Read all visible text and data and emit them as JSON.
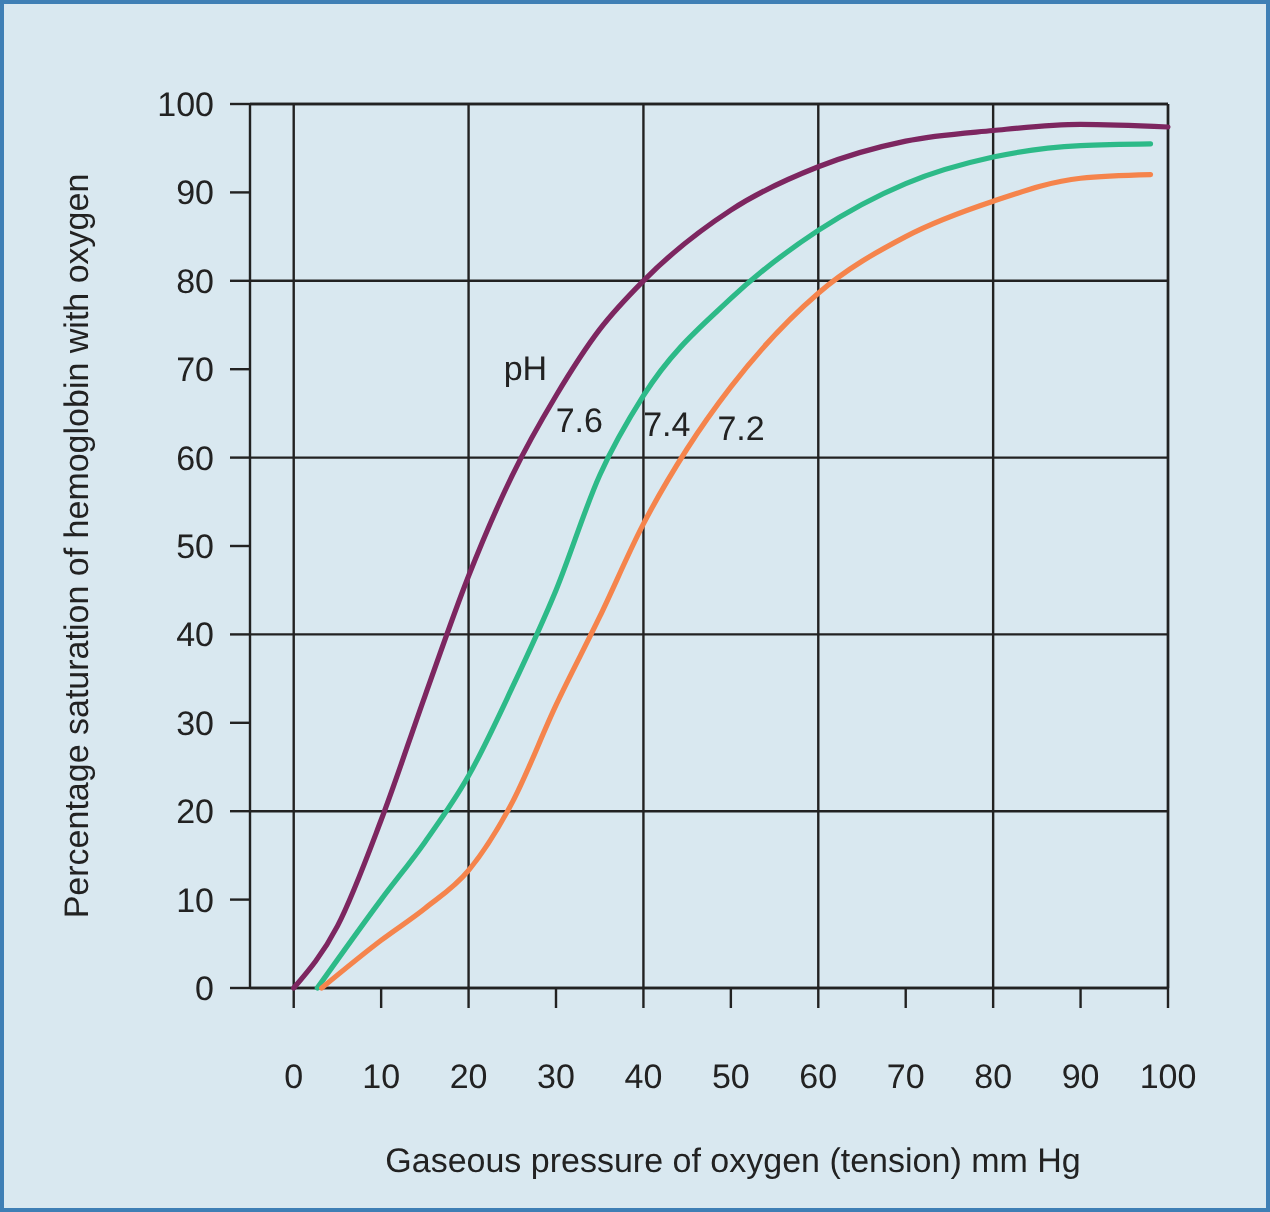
{
  "chart_data": {
    "type": "line",
    "xlabel": "Gaseous pressure of oxygen (tension) mm Hg",
    "ylabel": "Percentage saturation of hemoglobin with oxygen",
    "legend_title": "pH",
    "xlim": [
      -5,
      100
    ],
    "ylim": [
      0,
      100
    ],
    "xticks": [
      0,
      10,
      20,
      30,
      40,
      50,
      60,
      70,
      80,
      90,
      100
    ],
    "yticks": [
      0,
      10,
      20,
      30,
      40,
      50,
      60,
      70,
      80,
      90,
      100
    ],
    "grid": true,
    "marker": "none",
    "line_style": "solid",
    "series": [
      {
        "name": "7.6",
        "color": "#7d2660",
        "x": [
          0,
          5,
          10,
          15,
          20,
          25,
          30,
          35,
          40,
          50,
          60,
          70,
          80,
          90,
          100
        ],
        "values": [
          0,
          7,
          19,
          33,
          46.6,
          58,
          67,
          74.5,
          80,
          88,
          92.9,
          95.8,
          97,
          97.7,
          97.4
        ]
      },
      {
        "name": "7.4",
        "color": "#2dba88",
        "x": [
          2.7,
          10,
          15,
          20,
          25,
          30,
          35,
          40,
          50,
          60,
          70,
          80,
          90,
          98
        ],
        "values": [
          0,
          10,
          16.5,
          24,
          34,
          45,
          58,
          67,
          78,
          85.7,
          91,
          94,
          95.3,
          95.5
        ]
      },
      {
        "name": "7.2",
        "color": "#f5844c",
        "x": [
          3.2,
          10,
          15,
          20,
          25,
          30,
          35,
          40,
          45,
          50,
          60,
          70,
          80,
          90,
          98
        ],
        "values": [
          0,
          5.4,
          9,
          13.3,
          21,
          32,
          42,
          52.5,
          61,
          68,
          78.6,
          85,
          89,
          91.6,
          92
        ]
      }
    ]
  }
}
